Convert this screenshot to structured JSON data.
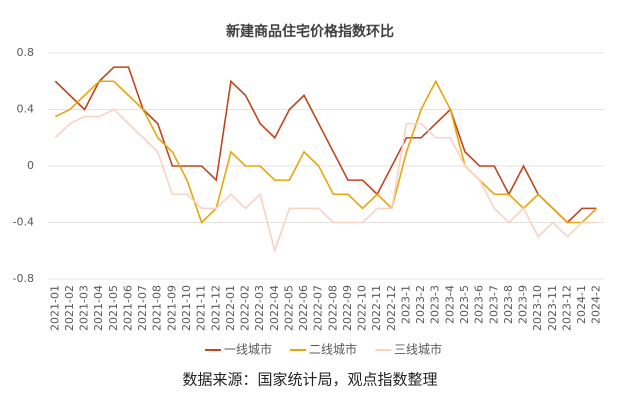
{
  "chart_data": {
    "type": "line",
    "title": "新建商品住宅价格指数环比",
    "categories": [
      "2021-01",
      "2021-02",
      "2021-03",
      "2021-04",
      "2021-05",
      "2021-06",
      "2021-07",
      "2021-08",
      "2021-09",
      "2021-10",
      "2021-11",
      "2021-12",
      "2022-01",
      "2022-02",
      "2022-03",
      "2022-04",
      "2022-05",
      "2022-06",
      "2022-07",
      "2022-08",
      "2022-09",
      "2022-10",
      "2022-11",
      "2022-12",
      "2023-1",
      "2023-2",
      "2023-3",
      "2023-4",
      "2023-5",
      "2023-6",
      "2023-7",
      "2023-8",
      "2023-9",
      "2023-10",
      "2023-11",
      "2023-12",
      "2024-1",
      "2024-2"
    ],
    "series": [
      {
        "name": "一线城市",
        "color": "#c0461f",
        "values": [
          0.6,
          0.5,
          0.4,
          0.6,
          0.7,
          0.7,
          0.4,
          0.3,
          0,
          0,
          0,
          -0.1,
          0.6,
          0.5,
          0.3,
          0.2,
          0.4,
          0.5,
          0.3,
          0.1,
          -0.1,
          -0.1,
          -0.2,
          0,
          0.2,
          0.2,
          0.3,
          0.4,
          0.1,
          0,
          0,
          -0.2,
          0,
          -0.2,
          -0.3,
          -0.4,
          -0.3,
          -0.3
        ]
      },
      {
        "name": "二线城市",
        "color": "#e8a60c",
        "values": [
          0.35,
          0.4,
          0.5,
          0.6,
          0.6,
          0.5,
          0.4,
          0.2,
          0.1,
          -0.1,
          -0.4,
          -0.3,
          0.1,
          0,
          0,
          -0.1,
          -0.1,
          0.1,
          0,
          -0.2,
          -0.2,
          -0.3,
          -0.2,
          -0.3,
          0.1,
          0.4,
          0.6,
          0.4,
          0,
          -0.1,
          -0.2,
          -0.2,
          -0.3,
          -0.2,
          -0.3,
          -0.4,
          -0.4,
          -0.3
        ]
      },
      {
        "name": "三线城市",
        "color": "#f8d3c4",
        "values": [
          0.2,
          0.3,
          0.35,
          0.35,
          0.4,
          0.3,
          0.2,
          0.1,
          -0.2,
          -0.2,
          -0.3,
          -0.3,
          -0.2,
          -0.3,
          -0.2,
          -0.6,
          -0.3,
          -0.3,
          -0.3,
          -0.4,
          -0.4,
          -0.4,
          -0.3,
          -0.3,
          0.3,
          0.3,
          0.2,
          0.2,
          0,
          -0.1,
          -0.3,
          -0.4,
          -0.3,
          -0.5,
          -0.4,
          -0.5,
          -0.4,
          -0.4
        ]
      }
    ],
    "ylim": [
      -0.8,
      0.8
    ],
    "yticks": [
      -0.8,
      -0.4,
      0,
      0.4,
      0.8
    ],
    "grid": true,
    "note": "数据来源：国家统计局，观点指数整理"
  }
}
